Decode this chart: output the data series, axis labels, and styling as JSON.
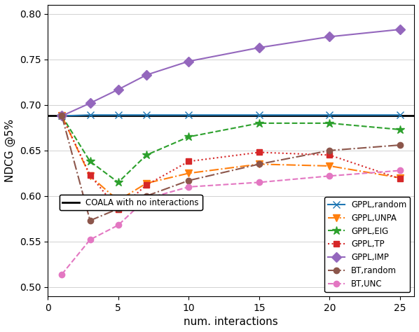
{
  "x": [
    1,
    3,
    5,
    7,
    10,
    15,
    20,
    25
  ],
  "GPPL_random": [
    0.688,
    0.689,
    0.689,
    0.689,
    0.689,
    0.689,
    0.689,
    0.689
  ],
  "GPPL_UNPA": [
    0.688,
    0.622,
    0.595,
    0.614,
    0.625,
    0.635,
    0.633,
    0.62
  ],
  "GPPL_EIG": [
    0.688,
    0.638,
    0.615,
    0.645,
    0.665,
    0.68,
    0.68,
    0.673
  ],
  "GPPL_TP": [
    0.688,
    0.623,
    0.585,
    0.612,
    0.638,
    0.648,
    0.645,
    0.619
  ],
  "GPPL_IMP": [
    0.688,
    0.702,
    0.717,
    0.733,
    0.748,
    0.763,
    0.775,
    0.783
  ],
  "BT_random": [
    0.688,
    0.573,
    0.586,
    0.6,
    0.617,
    0.635,
    0.65,
    0.656
  ],
  "BT_UNC": [
    0.514,
    0.552,
    0.568,
    0.597,
    0.61,
    0.615,
    0.622,
    0.628
  ],
  "COALA": 0.688,
  "colors": {
    "GPPL_random": "#1f77b4",
    "GPPL_UNPA": "#ff7f0e",
    "GPPL_EIG": "#2ca02c",
    "GPPL_TP": "#d62728",
    "GPPL_IMP": "#9467bd",
    "BT_random": "#8c564b",
    "BT_UNC": "#e377c2"
  },
  "xlabel": "num. interactions",
  "ylabel": "NDCG @5%",
  "ylim": [
    0.49,
    0.81
  ],
  "xlim": [
    0,
    26
  ],
  "figsize": [
    5.98,
    4.74
  ],
  "dpi": 100,
  "xticks": [
    0,
    5,
    10,
    15,
    20,
    25
  ],
  "yticks": [
    0.5,
    0.55,
    0.6,
    0.65,
    0.7,
    0.75,
    0.8
  ]
}
